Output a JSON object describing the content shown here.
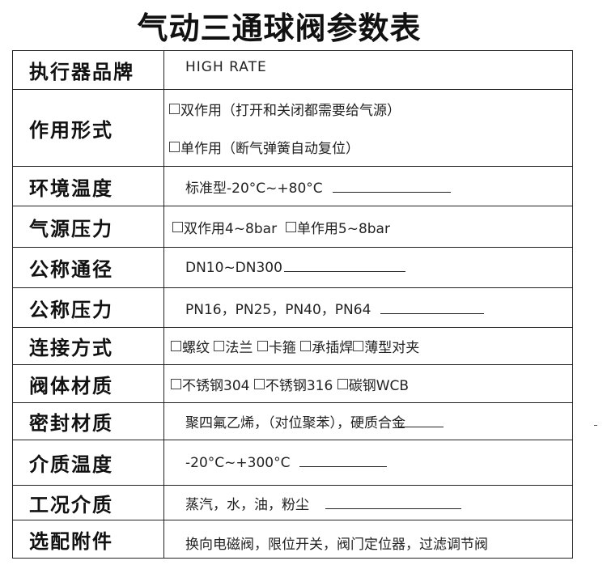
{
  "title": "气动三通球阀参数表",
  "rows": [
    {
      "label": "执行器品牌",
      "value": "HIGH  RATE"
    },
    {
      "label": "作用形式",
      "options": [
        "双作用（打开和关闭都需要给气源）",
        "单作用（断气弹簧自动复位）"
      ]
    },
    {
      "label": "环境温度",
      "value": "标准型-20°C~+80°C"
    },
    {
      "label": "气源压力",
      "options": [
        "双作用4~8bar",
        "单作用5~8bar"
      ]
    },
    {
      "label": "公称通径",
      "value": "DN10~DN300"
    },
    {
      "label": "公称压力",
      "value": "PN16，PN25，PN40，PN64"
    },
    {
      "label": "连接方式",
      "options": [
        "螺纹",
        "法兰",
        "卡箍",
        "承插焊",
        "薄型对夹"
      ]
    },
    {
      "label": "阀体材质",
      "options": [
        "不锈钢304",
        "不锈钢316",
        "碳钢WCB"
      ]
    },
    {
      "label": "密封材质",
      "value": "聚四氟乙烯，（对位聚苯），硬质合金"
    },
    {
      "label": "介质温度",
      "value": "-20°C~+300°C"
    },
    {
      "label": "工况介质",
      "value": "蒸汽，水，油，粉尘"
    },
    {
      "label": "选配附件",
      "value": "换向电磁阀，限位开关，阀门定位器，过滤调节阀"
    }
  ]
}
